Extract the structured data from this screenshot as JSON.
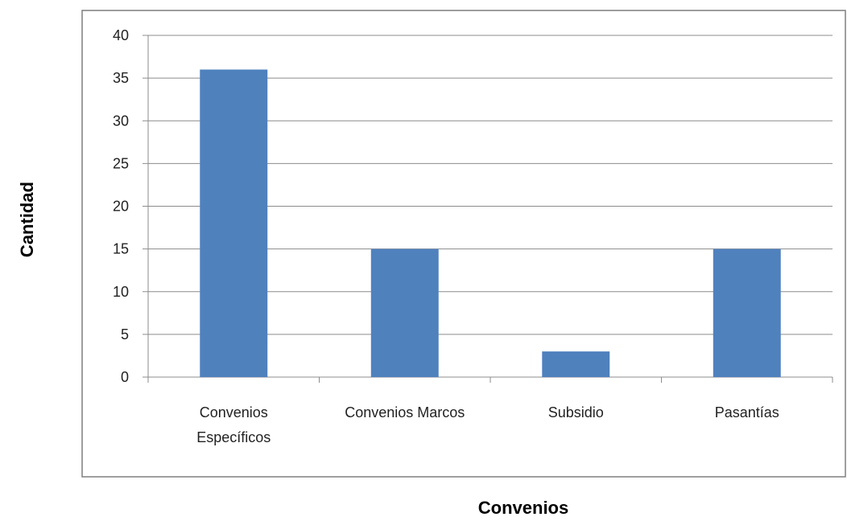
{
  "chart_data": {
    "type": "bar",
    "categories": [
      "Convenios Específicos",
      "Convenios Marcos",
      "Subsidio",
      "Pasantías"
    ],
    "category_label_lines": [
      [
        "Convenios",
        "Específicos"
      ],
      [
        "Convenios Marcos"
      ],
      [
        "Subsidio"
      ],
      [
        "Pasantías"
      ]
    ],
    "values": [
      36,
      15,
      3,
      15
    ],
    "ylim": [
      0,
      40
    ],
    "yticks": [
      0,
      5,
      10,
      15,
      20,
      25,
      30,
      35,
      40
    ],
    "ylabel": "Cantidad",
    "xlabel": "Convenios",
    "grid": true,
    "legend": "none",
    "colors": {
      "bar": "#4F81BD",
      "grid": "#8C8C8C",
      "frame": "#7F7F7F"
    }
  }
}
